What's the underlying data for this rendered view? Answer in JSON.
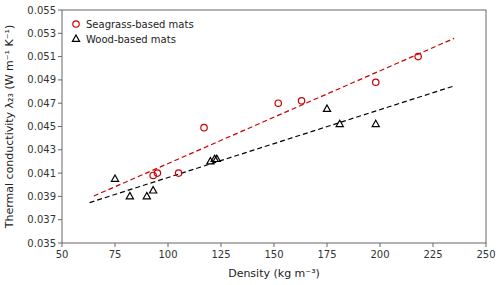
{
  "chart_data": {
    "type": "scatter",
    "xlabel": "Density (kg m⁻³)",
    "ylabel": "Thermal conductivity λ₂₃ (W m⁻¹ K⁻¹)",
    "xlim": [
      50,
      250
    ],
    "ylim": [
      0.035,
      0.055
    ],
    "xticks": [
      50,
      75,
      100,
      125,
      150,
      175,
      200,
      225,
      250
    ],
    "yticks": [
      0.035,
      0.037,
      0.039,
      0.041,
      0.043,
      0.045,
      0.047,
      0.049,
      0.051,
      0.053,
      0.055
    ],
    "grid": false,
    "legend": "upper left",
    "series": [
      {
        "type": "line",
        "line_style": "dashed",
        "color": "#cc0000",
        "x": [
          65,
          235
        ],
        "values": [
          0.0390319,
          0.0525676
        ]
      },
      {
        "type": "line",
        "line_style": "dashed",
        "color": "#000000",
        "x": [
          63,
          235
        ],
        "values": [
          0.0384666,
          0.0484841
        ]
      },
      {
        "type": "scatter",
        "name": "Seagrass-based mats",
        "color": "#cc0000",
        "marker": "circle",
        "x": [
          93,
          95,
          105,
          117,
          152,
          163,
          198,
          218
        ],
        "values": [
          0.0408,
          0.041,
          0.041,
          0.0449,
          0.047,
          0.0472,
          0.0488,
          0.051
        ]
      },
      {
        "type": "scatter",
        "name": "Wood-based mats",
        "color": "#000000",
        "marker": "triangle",
        "x": [
          75,
          82,
          90,
          93,
          120,
          122,
          123,
          175,
          181,
          198
        ],
        "values": [
          0.0405,
          0.039,
          0.039,
          0.0395,
          0.042,
          0.0422,
          0.0422,
          0.0465,
          0.0452,
          0.0452
        ]
      }
    ]
  }
}
